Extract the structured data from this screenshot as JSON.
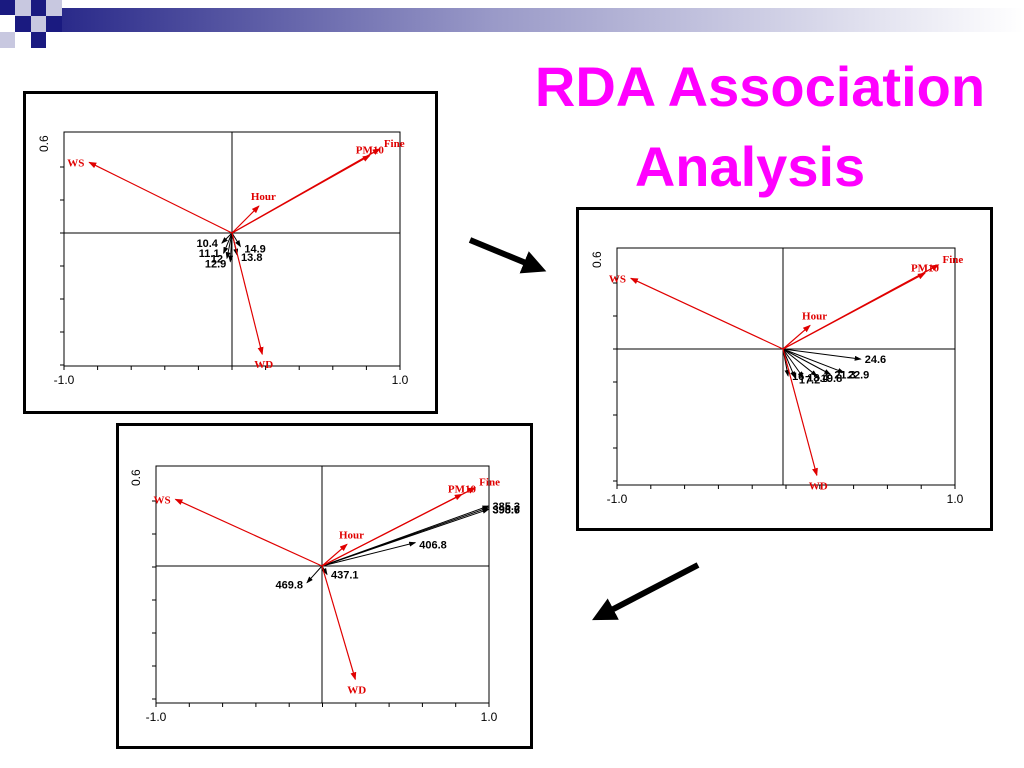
{
  "slide": {
    "title_line1": "RDA Association",
    "title_line2": "Analysis"
  },
  "colors": {
    "title": "#ff00ff",
    "vectors": "#e00000",
    "samples": "#000000",
    "banner_dark": "#1a1a80",
    "banner_light": "#c8c8e0"
  },
  "plots": [
    {
      "id": "plot-1",
      "axis": {
        "y_tick_label": "0.6",
        "x_min_label": "-1.0",
        "x_max_label": "1.0"
      },
      "env_vectors": [
        {
          "label": "WS",
          "end": [
            -0.85,
            0.42
          ]
        },
        {
          "label": "PM10",
          "end": [
            0.82,
            0.46
          ]
        },
        {
          "label": "Fine",
          "end": [
            0.88,
            0.5
          ]
        },
        {
          "label": "Hour",
          "end": [
            0.16,
            0.16
          ]
        },
        {
          "label": "WD",
          "end": [
            0.18,
            -0.72
          ]
        }
      ],
      "samples": [
        {
          "label": "10.4",
          "end": [
            -0.06,
            -0.06
          ]
        },
        {
          "label": "14.9",
          "end": [
            0.05,
            -0.08
          ]
        },
        {
          "label": "11.1",
          "end": [
            -0.05,
            -0.12
          ]
        },
        {
          "label": "13.8",
          "end": [
            0.03,
            -0.13
          ]
        },
        {
          "label": "12",
          "end": [
            -0.03,
            -0.15
          ]
        },
        {
          "label": "12.9",
          "end": [
            -0.01,
            -0.17
          ]
        }
      ]
    },
    {
      "id": "plot-2",
      "axis": {
        "y_tick_label": "0.6",
        "x_min_label": "-1.0",
        "x_max_label": "1.0"
      },
      "env_vectors": [
        {
          "label": "WS",
          "end": [
            -0.9,
            0.42
          ]
        },
        {
          "label": "PM10",
          "end": [
            0.84,
            0.45
          ]
        },
        {
          "label": "Fine",
          "end": [
            0.92,
            0.5
          ]
        },
        {
          "label": "Hour",
          "end": [
            0.16,
            0.14
          ]
        },
        {
          "label": "WD",
          "end": [
            0.2,
            -0.75
          ]
        }
      ],
      "samples": [
        {
          "label": "24.6",
          "end": [
            0.46,
            -0.06
          ]
        },
        {
          "label": "22.9",
          "end": [
            0.36,
            -0.14
          ]
        },
        {
          "label": "21.3",
          "end": [
            0.28,
            -0.15
          ]
        },
        {
          "label": "19.8",
          "end": [
            0.2,
            -0.16
          ]
        },
        {
          "label": "18.4",
          "end": [
            0.12,
            -0.17
          ]
        },
        {
          "label": "17.2",
          "end": [
            0.07,
            -0.17
          ]
        },
        {
          "label": "16",
          "end": [
            0.03,
            -0.16
          ]
        }
      ]
    },
    {
      "id": "plot-3",
      "axis": {
        "y_tick_label": "0.6",
        "x_min_label": "-1.0",
        "x_max_label": "1.0"
      },
      "env_vectors": [
        {
          "label": "WS",
          "end": [
            -0.88,
            0.4
          ]
        },
        {
          "label": "PM10",
          "end": [
            0.84,
            0.43
          ]
        },
        {
          "label": "Fine",
          "end": [
            0.92,
            0.47
          ]
        },
        {
          "label": "Hour",
          "end": [
            0.15,
            0.13
          ]
        },
        {
          "label": "WD",
          "end": [
            0.2,
            -0.68
          ]
        }
      ],
      "samples": [
        {
          "label": "385.3",
          "end": [
            1.0,
            0.36
          ]
        },
        {
          "label": "395.7",
          "end": [
            1.0,
            0.35
          ]
        },
        {
          "label": "398.6",
          "end": [
            1.0,
            0.34
          ]
        },
        {
          "label": "406.8",
          "end": [
            0.56,
            0.14
          ]
        },
        {
          "label": "437.1",
          "end": [
            0.03,
            -0.05
          ]
        },
        {
          "label": "469.8",
          "end": [
            -0.09,
            -0.1
          ]
        }
      ]
    }
  ]
}
